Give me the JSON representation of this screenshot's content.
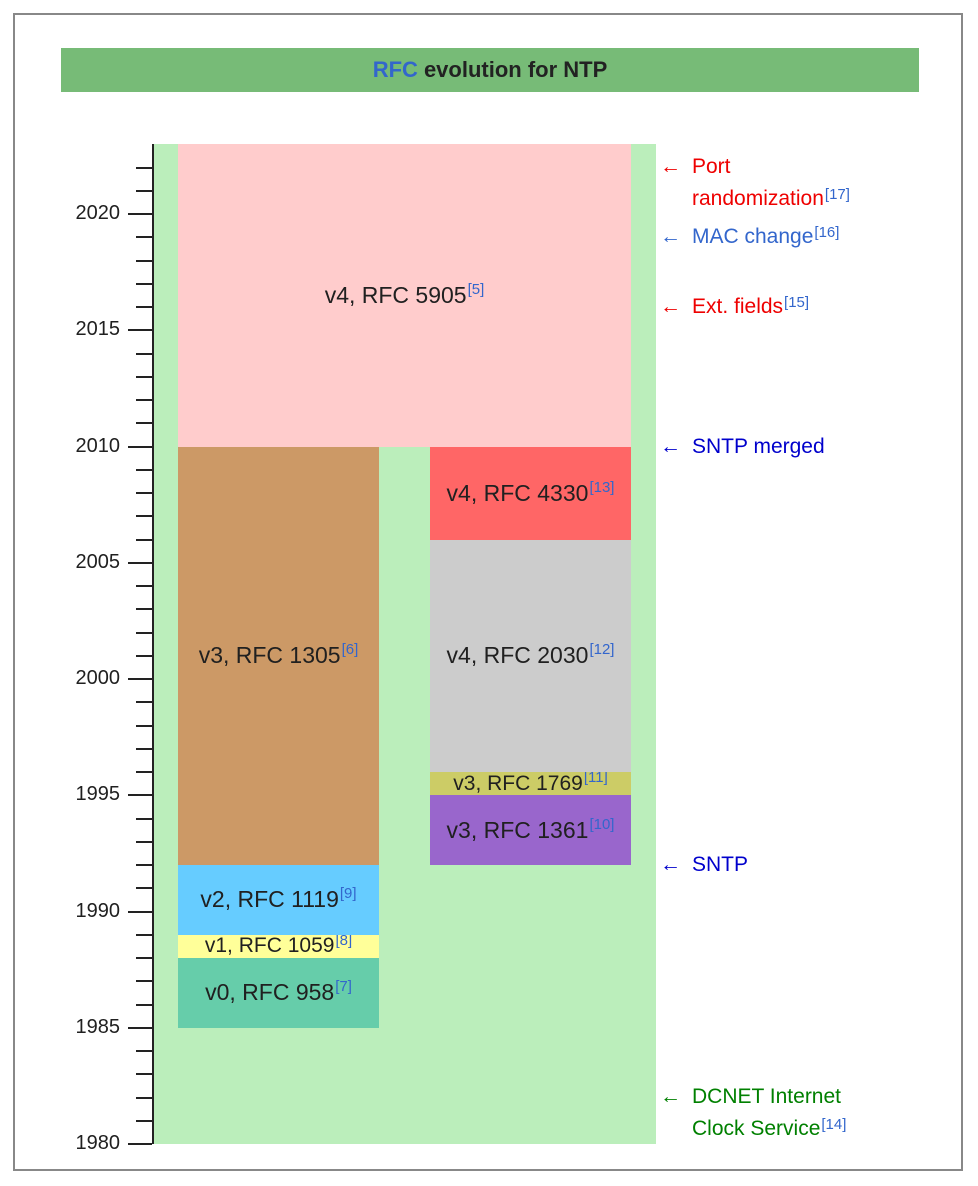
{
  "title": {
    "prefix": "RFC",
    "suffix": "evolution for NTP"
  },
  "axis": {
    "min": 1980,
    "max": 2023,
    "labels": [
      "1980",
      "1985",
      "1990",
      "1995",
      "2000",
      "2005",
      "2010",
      "2015",
      "2020"
    ]
  },
  "blocks": [
    {
      "id": "v0",
      "text": "v0, RFC 958",
      "ref": "[7]",
      "start": 1985,
      "end": 1988,
      "column": "left",
      "color": "#66cdaa"
    },
    {
      "id": "v1",
      "text": "v1, RFC 1059",
      "ref": "[8]",
      "start": 1988,
      "end": 1989,
      "column": "left",
      "color": "#ffff99"
    },
    {
      "id": "v2",
      "text": "v2, RFC 1119",
      "ref": "[9]",
      "start": 1989,
      "end": 1992,
      "column": "left",
      "color": "#66ccff"
    },
    {
      "id": "v3-1305",
      "text": "v3, RFC 1305",
      "ref": "[6]",
      "start": 1992,
      "end": 2010,
      "column": "left",
      "color": "#cc9966"
    },
    {
      "id": "v3-1361",
      "text": "v3, RFC 1361",
      "ref": "[10]",
      "start": 1992,
      "end": 1995,
      "column": "right",
      "color": "#9966cc"
    },
    {
      "id": "v3-1769",
      "text": "v3, RFC 1769",
      "ref": "[11]",
      "start": 1995,
      "end": 1996,
      "column": "right",
      "color": "#cccc66"
    },
    {
      "id": "v4-2030",
      "text": "v4, RFC 2030",
      "ref": "[12]",
      "start": 1996,
      "end": 2006,
      "column": "right",
      "color": "#cccccc"
    },
    {
      "id": "v4-4330",
      "text": "v4, RFC 4330",
      "ref": "[13]",
      "start": 2006,
      "end": 2010,
      "column": "right",
      "color": "#ff6666"
    },
    {
      "id": "v4-5905",
      "text": "v4, RFC 5905",
      "ref": "[5]",
      "start": 2010,
      "end": 2023,
      "column": "full",
      "color": "#ffcccc"
    }
  ],
  "events": [
    {
      "id": "dcnet",
      "arrow": "←",
      "lines": [
        "DCNET Internet",
        "Clock Service"
      ],
      "ref": "[14]",
      "year": 1981,
      "color": "#008000"
    },
    {
      "id": "sntp",
      "arrow": "←",
      "lines": [
        "SNTP"
      ],
      "ref": "",
      "year": 1992,
      "color": "#0000cc"
    },
    {
      "id": "sntp-merged",
      "arrow": "←",
      "lines": [
        "SNTP merged"
      ],
      "ref": "",
      "year": 2010,
      "color": "#0000cc"
    },
    {
      "id": "ext-fields",
      "arrow": "←",
      "lines": [
        "Ext. fields"
      ],
      "ref": "[15]",
      "year": 2016,
      "color": "#ee0000"
    },
    {
      "id": "mac-change",
      "arrow": "←",
      "lines": [
        "MAC change"
      ],
      "ref": "[16]",
      "year": 2019,
      "color": "#3366cc"
    },
    {
      "id": "port-rand",
      "arrow": "←",
      "lines": [
        "Port",
        "randomization"
      ],
      "ref": "[17]",
      "year": 2021,
      "color": "#ee0000"
    }
  ],
  "colors": {
    "background_band": "#bbeebb",
    "title_bar": "#77bb77"
  }
}
